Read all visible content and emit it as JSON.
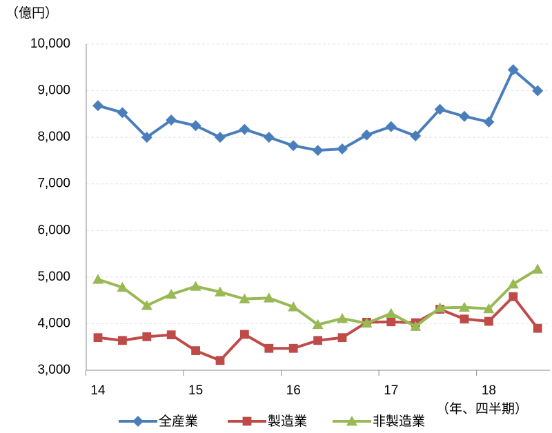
{
  "chart_data": {
    "type": "line",
    "y_unit": "（億円）",
    "x_unit": "（年、四半期）",
    "categories": [
      "14",
      null,
      null,
      null,
      "15",
      null,
      null,
      null,
      "16",
      null,
      null,
      null,
      "17",
      null,
      null,
      null,
      "18",
      null,
      null
    ],
    "series": [
      {
        "name": "全産業",
        "color": "#4a7ebb",
        "marker": "diamond",
        "values": [
          8680,
          8530,
          8000,
          8370,
          8250,
          8000,
          8170,
          8000,
          7820,
          7720,
          7750,
          8050,
          8230,
          8030,
          8600,
          8450,
          8330,
          9450,
          9000
        ]
      },
      {
        "name": "製造業",
        "color": "#be4b48",
        "marker": "square",
        "values": [
          3700,
          3640,
          3720,
          3760,
          3420,
          3210,
          3770,
          3470,
          3470,
          3640,
          3700,
          4030,
          4040,
          4020,
          4310,
          4100,
          4050,
          4580,
          3900
        ]
      },
      {
        "name": "非製造業",
        "color": "#98b954",
        "marker": "triangle",
        "values": [
          4950,
          4780,
          4390,
          4630,
          4800,
          4680,
          4530,
          4550,
          4360,
          3980,
          4110,
          4010,
          4220,
          3940,
          4340,
          4350,
          4320,
          4850,
          5170
        ]
      }
    ],
    "ylim": [
      3000,
      10000
    ],
    "yticks": [
      {
        "value": 3000,
        "label": "3,000"
      },
      {
        "value": 4000,
        "label": "4,000"
      },
      {
        "value": 5000,
        "label": "5,000"
      },
      {
        "value": 6000,
        "label": "6,000"
      },
      {
        "value": 7000,
        "label": "7,000"
      },
      {
        "value": 8000,
        "label": "8,000"
      },
      {
        "value": 9000,
        "label": "9,000"
      },
      {
        "value": 10000,
        "label": "10,000"
      }
    ],
    "grid": true
  }
}
